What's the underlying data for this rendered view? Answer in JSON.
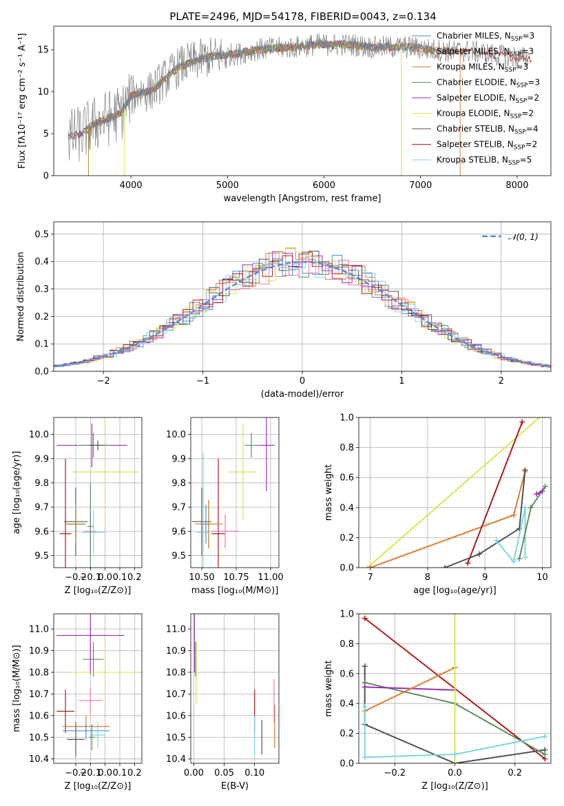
{
  "figure_title": "PLATE=2496, MJD=54178, FIBERID=0043, z=0.134",
  "colors": {
    "Chabrier MILES": "#4a8fd0",
    "Salpeter MILES": "#e07b2e",
    "Kroupa MILES": "#b38b2a",
    "Chabrier ELODIE": "#5f8a5f",
    "Salpeter ELODIE": "#9a2fb0",
    "Kroupa ELODIE": "#d4e84a",
    "Chabrier STELIB": "#505050",
    "Salpeter STELIB": "#b01818",
    "Kroupa STELIB": "#7ed6dd",
    "data": "#808080",
    "pink": "#e87ab0"
  },
  "chart_data": [
    {
      "id": "spectrum",
      "type": "line",
      "title": "PLATE=2496, MJD=54178, FIBERID=0043, z=0.134",
      "xlabel": "wavelength [Angstrom, rest frame]",
      "ylabel": "Flux [fλ10⁻¹⁷ erg cm⁻² s⁻¹ A⁻¹]",
      "xlim": [
        3200,
        8350
      ],
      "ylim": [
        0,
        17.8
      ],
      "xticks": [
        4000,
        5000,
        6000,
        7000,
        8000
      ],
      "yticks": [
        0,
        5,
        10,
        15
      ],
      "continuum": {
        "x": [
          3350,
          3500,
          3600,
          3700,
          3800,
          3900,
          4000,
          4100,
          4200,
          4300,
          4400,
          4500,
          4700,
          4900,
          5100,
          5300,
          5500,
          5700,
          5900,
          6100,
          6300,
          6500,
          6700,
          6900,
          7100,
          7300,
          7500,
          7700,
          7900,
          8100
        ],
        "y": [
          4.5,
          5.0,
          6.0,
          6.5,
          7.0,
          7.5,
          9.5,
          10.0,
          10.0,
          11.0,
          12.0,
          13.0,
          13.8,
          14.3,
          14.5,
          15.0,
          15.2,
          15.3,
          15.6,
          15.6,
          15.6,
          15.3,
          15.3,
          15.3,
          15.0,
          14.8,
          14.8,
          14.5,
          14.2,
          14.0
        ]
      },
      "legend": [
        {
          "label": "Chabrier MILES, N",
          "sub": "SSP",
          "n": "=3",
          "color_key": "Chabrier MILES"
        },
        {
          "label": "Salpeter MILES, N",
          "sub": "SSP",
          "n": "=3",
          "color_key": "Salpeter MILES"
        },
        {
          "label": "Kroupa MILES, N",
          "sub": "SSP",
          "n": "=3",
          "color_key": "Kroupa MILES"
        },
        {
          "label": "Chabrier ELODIE, N",
          "sub": "SSP",
          "n": "=3",
          "color_key": "Chabrier ELODIE"
        },
        {
          "label": "Salpeter ELODIE, N",
          "sub": "SSP",
          "n": "=2",
          "color_key": "Salpeter ELODIE"
        },
        {
          "label": "Kroupa ELODIE, N",
          "sub": "SSP",
          "n": "=2",
          "color_key": "Kroupa ELODIE"
        },
        {
          "label": "Chabrier STELIB, N",
          "sub": "SSP",
          "n": "=4",
          "color_key": "Chabrier STELIB"
        },
        {
          "label": "Salpeter STELIB, N",
          "sub": "SSP",
          "n": "=2",
          "color_key": "Salpeter STELIB"
        },
        {
          "label": "Kroupa STELIB, N",
          "sub": "SSP",
          "n": "=5",
          "color_key": "Kroupa STELIB"
        }
      ]
    },
    {
      "id": "residuals",
      "type": "histogram",
      "xlabel": "(data-model)/error",
      "ylabel": "Normed distribution",
      "xlim": [
        -2.5,
        2.5
      ],
      "ylim": [
        0,
        0.545
      ],
      "xticks": [
        -2,
        -1,
        0,
        1,
        2
      ],
      "yticks": [
        0.0,
        0.1,
        0.2,
        0.3,
        0.4,
        0.5
      ],
      "legend": "𝒩(0, 1)",
      "reference": "gaussian mean 0 sigma 1"
    },
    {
      "id": "age_vs_Z",
      "type": "errorbar",
      "xlabel": "Z [log₁₀(Z/Z⊙)]",
      "ylabel": "age  [log₁₀(age/yr)]",
      "xlim": [
        -0.35,
        0.25
      ],
      "ylim": [
        9.45,
        10.07
      ],
      "xticks": [
        -0.2,
        -0.1,
        0.0,
        0.1,
        0.2
      ],
      "yticks": [
        9.5,
        9.6,
        9.7,
        9.8,
        9.9,
        10.0
      ],
      "points": [
        {
          "c": "Salpeter ELODIE",
          "x": -0.09,
          "y": 9.955,
          "xerr": 0.24,
          "yerr": 0.09
        },
        {
          "c": "Chabrier ELODIE",
          "x": -0.08,
          "y": 9.955,
          "xerr": 0.12,
          "yerr": 0.05
        },
        {
          "c": "Chabrier STELIB",
          "x": -0.05,
          "y": 9.955,
          "xerr": 0.06,
          "yerr": 0.02
        },
        {
          "c": "Kroupa ELODIE",
          "x": 0.0,
          "y": 9.845,
          "xerr": 0.23,
          "yerr": 0.22
        },
        {
          "c": "Salpeter STELIB",
          "x": -0.27,
          "y": 9.59,
          "xerr": 0.04,
          "yerr": 0.31
        },
        {
          "c": "Chabrier STELIB",
          "x": -0.2,
          "y": 9.64,
          "xerr": 0.08,
          "yerr": 0.14
        },
        {
          "c": "Salpeter MILES",
          "x": -0.2,
          "y": 9.63,
          "xerr": 0.07,
          "yerr": 0.08
        },
        {
          "c": "Chabrier MILES",
          "x": -0.2,
          "y": 9.63,
          "xerr": 0.06,
          "yerr": 0.06
        },
        {
          "c": "Kroupa MILES",
          "x": -0.2,
          "y": 9.63,
          "xerr": 0.06,
          "yerr": 0.05
        },
        {
          "c": "Pink",
          "x": -0.1,
          "y": 9.6,
          "xerr": 0.04,
          "yerr": 0.08
        },
        {
          "c": "Kroupa STELIB",
          "x": -0.08,
          "y": 9.595,
          "xerr": 0.08,
          "yerr": 0.09
        },
        {
          "c": "Chabrier ELODIE",
          "x": -0.1,
          "y": 9.62,
          "xerr": 0.02,
          "yerr": 0.18
        }
      ]
    },
    {
      "id": "age_vs_mass",
      "type": "errorbar",
      "xlabel": "mass [log₁₀(M/M⊙)]",
      "ylabel": "",
      "xlim": [
        10.42,
        11.06
      ],
      "ylim": [
        9.45,
        10.07
      ],
      "xticks": [
        10.5,
        10.75,
        11.0
      ],
      "yticks": [
        9.5,
        9.6,
        9.7,
        9.8,
        9.9,
        10.0
      ],
      "points": [
        {
          "c": "Salpeter ELODIE",
          "x": 10.97,
          "y": 9.955,
          "xerr": 0.06,
          "yerr": 0.19
        },
        {
          "c": "Chabrier ELODIE",
          "x": 10.86,
          "y": 9.955,
          "xerr": 0.05,
          "yerr": 0.05
        },
        {
          "c": "Kroupa ELODIE",
          "x": 10.8,
          "y": 9.845,
          "xerr": 0.1,
          "yerr": 0.2
        },
        {
          "c": "Chabrier STELIB",
          "x": 10.5,
          "y": 9.64,
          "xerr": 0.07,
          "yerr": 0.14
        },
        {
          "c": "Salpeter STELIB",
          "x": 10.62,
          "y": 9.59,
          "xerr": 0.05,
          "yerr": 0.31
        },
        {
          "c": "Salpeter MILES",
          "x": 10.55,
          "y": 9.63,
          "xerr": 0.1,
          "yerr": 0.1
        },
        {
          "c": "Chabrier MILES",
          "x": 10.53,
          "y": 9.63,
          "xerr": 0.04,
          "yerr": 0.08
        },
        {
          "c": "Kroupa MILES",
          "x": 10.55,
          "y": 9.63,
          "xerr": 0.02,
          "yerr": 0.1
        },
        {
          "c": "Pink",
          "x": 10.67,
          "y": 9.6,
          "xerr": 0.1,
          "yerr": 0.07
        },
        {
          "c": "Kroupa STELIB",
          "x": 10.51,
          "y": 9.595,
          "xerr": 0.05,
          "yerr": 0.33
        }
      ]
    },
    {
      "id": "weight_vs_age",
      "type": "line",
      "xlabel": "age  [log₁₀(age/yr)]",
      "ylabel": "mass weight",
      "xlim": [
        6.8,
        10.15
      ],
      "ylim": [
        0,
        1.0
      ],
      "xticks": [
        7,
        8,
        9,
        10
      ],
      "yticks": [
        0.0,
        0.2,
        0.4,
        0.6,
        0.8,
        1.0
      ],
      "series": [
        {
          "c": "Kroupa ELODIE",
          "x": [
            6.95,
            10.1
          ],
          "y": [
            0.0,
            1.05
          ]
        },
        {
          "c": "Salpeter MILES",
          "x": [
            7.0,
            9.5,
            9.7
          ],
          "y": [
            0.0,
            0.35,
            0.64
          ]
        },
        {
          "c": "Salpeter STELIB",
          "x": [
            8.7,
            9.65
          ],
          "y": [
            0.03,
            0.97
          ]
        },
        {
          "c": "Chabrier STELIB",
          "x": [
            8.3,
            8.9,
            9.6,
            9.7
          ],
          "y": [
            0.0,
            0.09,
            0.26,
            0.65
          ]
        },
        {
          "c": "Kroupa STELIB",
          "x": [
            9.2,
            9.5,
            9.7,
            9.7
          ],
          "y": [
            0.18,
            0.04,
            0.4,
            0.07
          ]
        },
        {
          "c": "Chabrier ELODIE",
          "x": [
            9.6,
            9.8,
            10.05
          ],
          "y": [
            0.06,
            0.4,
            0.54
          ]
        },
        {
          "c": "Salpeter ELODIE",
          "x": [
            9.9,
            10.0
          ],
          "y": [
            0.49,
            0.51
          ]
        }
      ]
    },
    {
      "id": "mass_vs_Z",
      "type": "errorbar",
      "xlabel": "Z [log₁₀(Z/Z⊙)]",
      "ylabel": "mass [log₁₀(M/M⊙)]",
      "xlim": [
        -0.35,
        0.25
      ],
      "ylim": [
        10.38,
        11.07
      ],
      "xticks": [
        -0.2,
        -0.1,
        0.0,
        0.1,
        0.2
      ],
      "yticks": [
        10.4,
        10.5,
        10.6,
        10.7,
        10.8,
        10.9,
        11.0
      ],
      "points": [
        {
          "c": "Salpeter ELODIE",
          "x": -0.1,
          "y": 10.97,
          "xerr": 0.23,
          "yerr": 0.18
        },
        {
          "c": "Chabrier ELODIE",
          "x": -0.08,
          "y": 10.86,
          "xerr": 0.07,
          "yerr": 0.08
        },
        {
          "c": "Kroupa ELODIE",
          "x": 0.0,
          "y": 10.8,
          "xerr": 0.23,
          "yerr": 0.14
        },
        {
          "c": "Salpeter STELIB",
          "x": -0.27,
          "y": 10.62,
          "xerr": 0.06,
          "yerr": 0.1
        },
        {
          "c": "Pink",
          "x": -0.1,
          "y": 10.67,
          "xerr": 0.08,
          "yerr": 0.06
        },
        {
          "c": "Salpeter MILES",
          "x": -0.13,
          "y": 10.55,
          "xerr": 0.16,
          "yerr": 0.05
        },
        {
          "c": "Chabrier MILES",
          "x": -0.13,
          "y": 10.53,
          "xerr": 0.16,
          "yerr": 0.04
        },
        {
          "c": "Kroupa STELIB",
          "x": -0.05,
          "y": 10.51,
          "xerr": 0.05,
          "yerr": 0.06
        },
        {
          "c": "Chabrier STELIB",
          "x": -0.2,
          "y": 10.49,
          "xerr": 0.06,
          "yerr": 0.08
        },
        {
          "c": "Chabrier ELODIE",
          "x": -0.09,
          "y": 10.5,
          "xerr": 0.02,
          "yerr": 0.06
        }
      ]
    },
    {
      "id": "mass_vs_EBV",
      "type": "errorbar",
      "xlabel": "E(B-V)",
      "ylabel": "",
      "xlim": [
        -0.005,
        0.14
      ],
      "ylim": [
        10.38,
        11.07
      ],
      "xticks": [
        0.0,
        0.05,
        0.1
      ],
      "yticks": [
        10.4,
        10.5,
        10.6,
        10.7,
        10.8,
        10.9,
        11.0
      ],
      "points": [
        {
          "c": "Salpeter ELODIE",
          "x": 0.001,
          "y": 10.97,
          "xerr": 0.0,
          "yerr": 0.17
        },
        {
          "c": "Kroupa ELODIE",
          "x": 0.004,
          "y": 10.8,
          "xerr": 0.0,
          "yerr": 0.15
        },
        {
          "c": "Chabrier ELODIE",
          "x": 0.003,
          "y": 10.86,
          "xerr": 0.0,
          "yerr": 0.08
        },
        {
          "c": "Salpeter STELIB",
          "x": 0.1,
          "y": 10.62,
          "xerr": 0.0,
          "yerr": 0.1
        },
        {
          "c": "Kroupa STELIB",
          "x": 0.1,
          "y": 10.51,
          "xerr": 0.0,
          "yerr": 0.09
        },
        {
          "c": "Chabrier STELIB",
          "x": 0.112,
          "y": 10.5,
          "xerr": 0.0,
          "yerr": 0.08
        },
        {
          "c": "Salpeter MILES",
          "x": 0.133,
          "y": 10.55,
          "xerr": 0.0,
          "yerr": 0.1
        },
        {
          "c": "Pink",
          "x": 0.132,
          "y": 10.67,
          "xerr": 0.0,
          "yerr": 0.1
        }
      ]
    },
    {
      "id": "weight_vs_Z",
      "type": "line",
      "xlabel": "Z [log₁₀(Z/Z⊙)]",
      "ylabel": "mass weight",
      "xlim": [
        -0.32,
        0.32
      ],
      "ylim": [
        0,
        1.0
      ],
      "xticks": [
        -0.2,
        0.0,
        0.2
      ],
      "yticks": [
        0.0,
        0.2,
        0.4,
        0.6,
        0.8,
        1.0
      ],
      "series": [
        {
          "c": "Salpeter STELIB",
          "x": [
            -0.3,
            0.3
          ],
          "y": [
            0.97,
            0.03
          ]
        },
        {
          "c": "Chabrier STELIB",
          "x": [
            -0.3,
            -0.3,
            0.0,
            0.3
          ],
          "y": [
            0.65,
            0.26,
            0.0,
            0.09
          ]
        },
        {
          "c": "Chabrier ELODIE",
          "x": [
            -0.3,
            0.0,
            0.3
          ],
          "y": [
            0.54,
            0.4,
            0.06
          ]
        },
        {
          "c": "Salpeter ELODIE",
          "x": [
            -0.3,
            0.0
          ],
          "y": [
            0.51,
            0.49
          ]
        },
        {
          "c": "Salpeter MILES",
          "x": [
            -0.3,
            0.0
          ],
          "y": [
            0.35,
            0.64
          ]
        },
        {
          "c": "Kroupa ELODIE",
          "x": [
            0.0,
            0.0
          ],
          "y": [
            0.0,
            1.0
          ]
        },
        {
          "c": "Kroupa STELIB",
          "x": [
            -0.3,
            -0.3,
            0.0,
            0.3
          ],
          "y": [
            0.38,
            0.04,
            0.06,
            0.18
          ]
        }
      ]
    }
  ]
}
